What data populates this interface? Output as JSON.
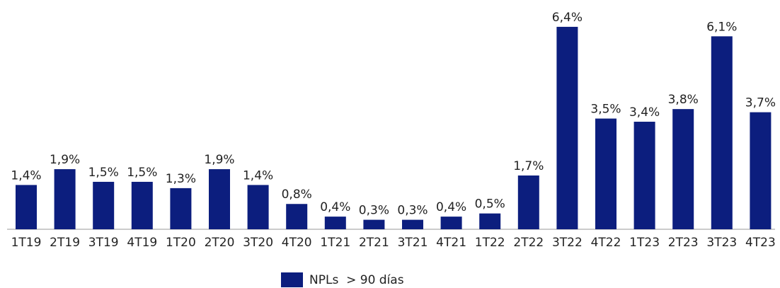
{
  "chart_data": {
    "type": "bar",
    "categories": [
      "1T19",
      "2T19",
      "3T19",
      "4T19",
      "1T20",
      "2T20",
      "3T20",
      "4T20",
      "1T21",
      "2T21",
      "3T21",
      "4T21",
      "1T22",
      "2T22",
      "3T22",
      "4T22",
      "1T23",
      "2T23",
      "3T23",
      "4T23"
    ],
    "series": [
      {
        "name": "NPLs  > 90 días",
        "color": "#0c1e7e",
        "values": [
          1.4,
          1.9,
          1.5,
          1.5,
          1.3,
          1.9,
          1.4,
          0.8,
          0.4,
          0.3,
          0.3,
          0.4,
          0.5,
          1.7,
          6.4,
          3.5,
          3.4,
          3.8,
          6.1,
          3.7
        ],
        "value_labels": [
          "1,4%",
          "1,9%",
          "1,5%",
          "1,5%",
          "1,3%",
          "1,9%",
          "1,4%",
          "0,8%",
          "0,4%",
          "0,3%",
          "0,3%",
          "0,4%",
          "0,5%",
          "1,7%",
          "6,4%",
          "3,5%",
          "3,4%",
          "3,8%",
          "6,1%",
          "3,7%"
        ]
      }
    ],
    "legend": "bottom"
  }
}
